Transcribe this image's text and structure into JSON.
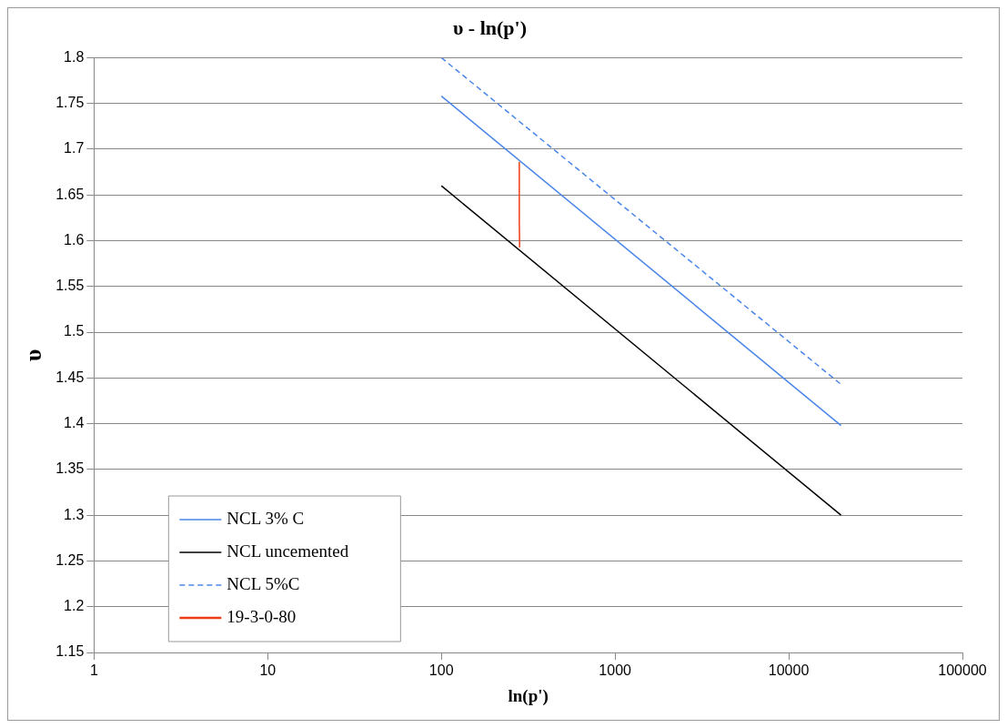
{
  "chart_data": {
    "type": "line",
    "title": "υ - ln(p')",
    "xlabel": "ln(p')",
    "ylabel": "υ",
    "log": "x",
    "xlim": [
      1,
      100000
    ],
    "xticks": [
      1,
      10,
      100,
      1000,
      10000,
      100000
    ],
    "ylim": [
      1.15,
      1.8
    ],
    "yticks": [
      1.15,
      1.2,
      1.25,
      1.3,
      1.35,
      1.4,
      1.45,
      1.5,
      1.55,
      1.6,
      1.65,
      1.7,
      1.75,
      1.8
    ],
    "grid": "y",
    "legend": "bottom left",
    "marker": "none",
    "series": [
      {
        "name": "NCL 3% C",
        "color": "#4a86e8",
        "x": [
          100,
          20000
        ],
        "values": [
          1.758,
          1.398
        ],
        "line_style": "solid"
      },
      {
        "name": "NCL uncemented",
        "color": "#000000",
        "x": [
          100,
          20000
        ],
        "values": [
          1.66,
          1.3
        ],
        "line_style": "solid"
      },
      {
        "name": "NCL 5%C",
        "color": "#4a86e8",
        "x": [
          100,
          20000
        ],
        "values": [
          1.8,
          1.443
        ],
        "line_style": "dashed"
      },
      {
        "name": "19-3-0-80",
        "color": "#f03c14",
        "x": [
          283,
          282,
          281,
          281,
          281
        ],
        "values": [
          1.593,
          1.6,
          1.62,
          1.65,
          1.686
        ],
        "line_style": "solid"
      }
    ]
  }
}
